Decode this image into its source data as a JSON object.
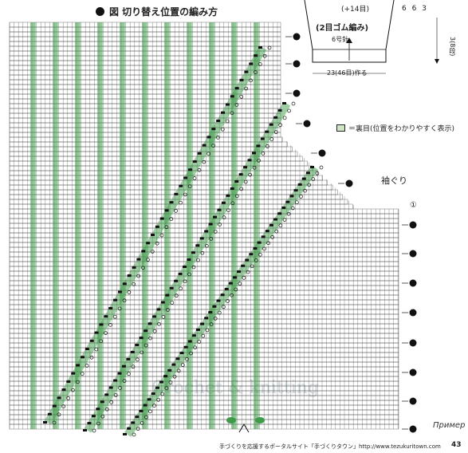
{
  "title": "図 切り替え位置の編み方",
  "inset": {
    "label": "(2目ゴム編み)",
    "needle": "6号針",
    "width_label": "23(46目)作る",
    "increase_label": "(+14目)",
    "side_label": "3(8段)",
    "top_digits": "6 6 3"
  },
  "legend": {
    "text": "＝裏目(位置をわかりやすく表示)"
  },
  "armhole": {
    "label": "袖ぐり",
    "row_marks": [
      "①"
    ]
  },
  "footer": {
    "text": "手づくりを応援するポータルサイト「手づくりタウン」http://www.tezukuritown.com",
    "page": "43"
  },
  "watermark": "Crochet & knitting",
  "cut_text": "Пример",
  "colors": {
    "grid": "#3a3a3a",
    "green": "#3f9a4a",
    "paper": "#ffffff"
  }
}
